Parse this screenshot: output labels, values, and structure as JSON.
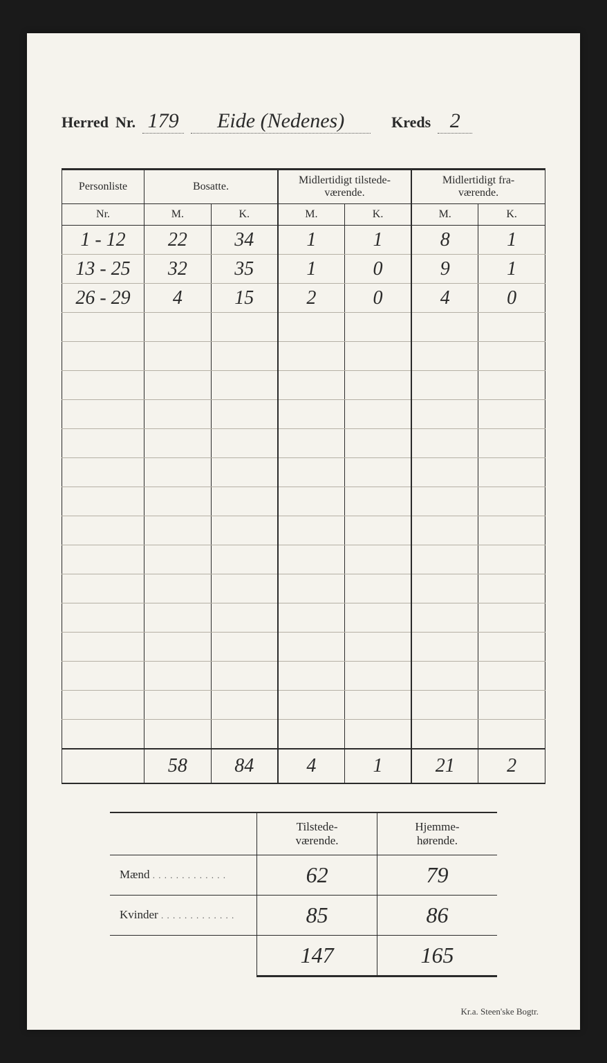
{
  "header": {
    "herred_label": "Herred",
    "nr_label": "Nr.",
    "herred_nr": "179",
    "herred_name": "Eide (Nedenes)",
    "kreds_label": "Kreds",
    "kreds_nr": "2"
  },
  "table": {
    "col_personliste": "Personliste",
    "col_nr": "Nr.",
    "col_bosatte": "Bosatte.",
    "col_midl_til": "Midlertidigt tilstede-\nværende.",
    "col_midl_fra": "Midlertidigt fra-\nværende.",
    "col_m": "M.",
    "col_k": "K.",
    "rows": [
      {
        "nr": "1 - 12",
        "bm": "22",
        "bk": "34",
        "tm": "1",
        "tk": "1",
        "fm": "8",
        "fk": "1"
      },
      {
        "nr": "13 - 25",
        "bm": "32",
        "bk": "35",
        "tm": "1",
        "tk": "0",
        "fm": "9",
        "fk": "1"
      },
      {
        "nr": "26 - 29",
        "bm": "4",
        "bk": "15",
        "tm": "2",
        "tk": "0",
        "fm": "4",
        "fk": "0"
      }
    ],
    "empty_rows": 15,
    "totals": {
      "bm": "58",
      "bk": "84",
      "tm": "4",
      "tk": "1",
      "fm": "21",
      "fk": "2"
    }
  },
  "summary": {
    "col_tilstede": "Tilstede-\nværende.",
    "col_hjemme": "Hjemme-\nhørende.",
    "maend_label": "Mænd",
    "kvinder_label": "Kvinder",
    "maend": {
      "til": "62",
      "hj": "79"
    },
    "kvinder": {
      "til": "85",
      "hj": "86"
    },
    "sum": {
      "til": "147",
      "hj": "165"
    }
  },
  "footer": "Kr.a.  Steen'ske Bogtr."
}
